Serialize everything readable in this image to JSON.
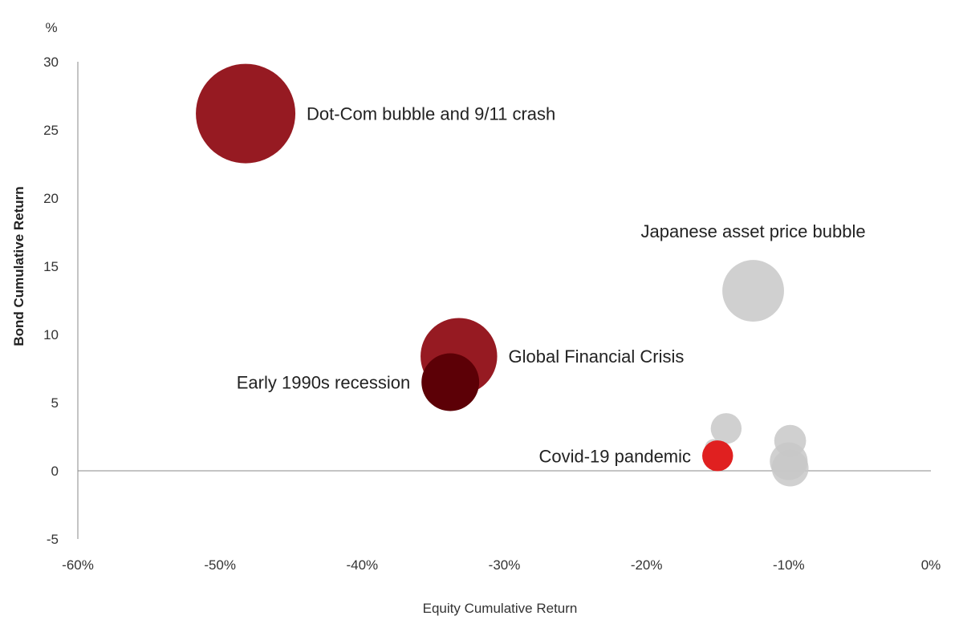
{
  "chart_data": {
    "type": "scatter",
    "subtype": "bubble",
    "xlabel": "Equity Cumulative Return",
    "ylabel": "Bond Cumulative Return",
    "y_unit": "%",
    "xlim": [
      -60,
      0
    ],
    "ylim": [
      -5,
      30
    ],
    "x_ticks": [
      -60,
      -50,
      -40,
      -30,
      -20,
      -10,
      0
    ],
    "x_tick_labels": [
      "-60%",
      "-50%",
      "-40%",
      "-30%",
      "-20%",
      "-10%",
      "0%"
    ],
    "y_ticks": [
      -5,
      0,
      5,
      10,
      15,
      20,
      25,
      30
    ],
    "y_tick_labels": [
      "-5",
      "0",
      "5",
      "10",
      "15",
      "20",
      "25",
      "30"
    ],
    "grid": false,
    "legend": "none",
    "colors": {
      "dark_red": "#961a22",
      "darkest_red": "#5c0006",
      "bright_red": "#e02020",
      "grey": "#c8c8c8",
      "axis": "#888888"
    },
    "points": [
      {
        "label": "Dot-Com bubble and 9/11 crash",
        "x": -48.2,
        "y": 26.2,
        "size": 1.0,
        "color": "#961a22",
        "label_side": "right"
      },
      {
        "label": "Japanese asset price bubble",
        "x": -12.5,
        "y": 13.2,
        "size": 0.62,
        "color": "#c8c8c8",
        "label_side": "above"
      },
      {
        "label": "Global Financial Crisis",
        "x": -33.2,
        "y": 8.4,
        "size": 0.77,
        "color": "#961a22",
        "label_side": "right"
      },
      {
        "label": "Early 1990s recession",
        "x": -33.8,
        "y": 6.5,
        "size": 0.58,
        "color": "#5c0006",
        "label_side": "left"
      },
      {
        "label": "Covid-19 pandemic",
        "x": -15.0,
        "y": 1.1,
        "size": 0.31,
        "color": "#e02020",
        "label_side": "left"
      },
      {
        "label": "",
        "x": -14.4,
        "y": 3.1,
        "size": 0.31,
        "color": "#c8c8c8"
      },
      {
        "label": "",
        "x": -15.3,
        "y": 1.7,
        "size": 0.17,
        "color": "#c8c8c8"
      },
      {
        "label": "",
        "x": -9.9,
        "y": 2.2,
        "size": 0.32,
        "color": "#c8c8c8"
      },
      {
        "label": "",
        "x": -10.0,
        "y": 0.7,
        "size": 0.38,
        "color": "#c8c8c8"
      },
      {
        "label": "",
        "x": -9.9,
        "y": 0.2,
        "size": 0.37,
        "color": "#c8c8c8"
      }
    ]
  }
}
